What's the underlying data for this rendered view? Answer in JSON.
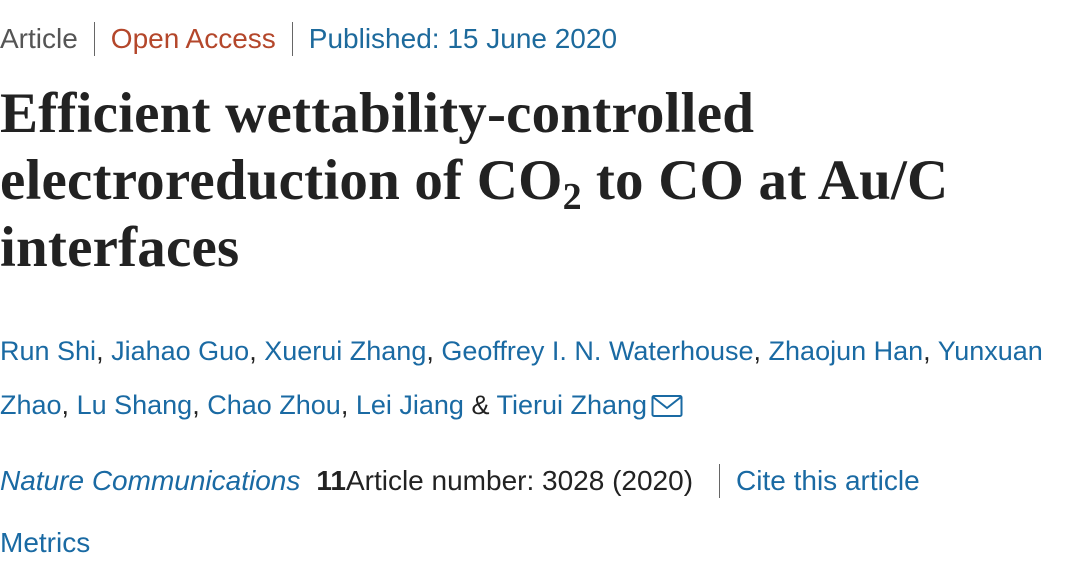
{
  "meta": {
    "type": "Article",
    "access": "Open Access",
    "published": "Published: 15 June 2020"
  },
  "title": {
    "line1": "Efficient wettability-controlled",
    "line2_before": "electroreduction of CO",
    "line2_sub": "2",
    "line2_after": "to CO at Au/C",
    "line3": "interfaces"
  },
  "authors": {
    "names": [
      "Run Shi",
      "Jiahao Guo",
      "Xuerui Zhang",
      "Geoffrey I. N. Waterhouse",
      "Zhaojun Han",
      "Yunxuan Zhao",
      "Lu Shang",
      "Chao Zhou",
      "Lei Jiang",
      "Tierui Zhang"
    ],
    "separator": ",",
    "conjunction": "&"
  },
  "journal": {
    "name": "Nature Communications",
    "volume": "11",
    "article_number": "Article number: 3028 (2020)",
    "cite": "Cite this article"
  },
  "metrics": "Metrics"
}
